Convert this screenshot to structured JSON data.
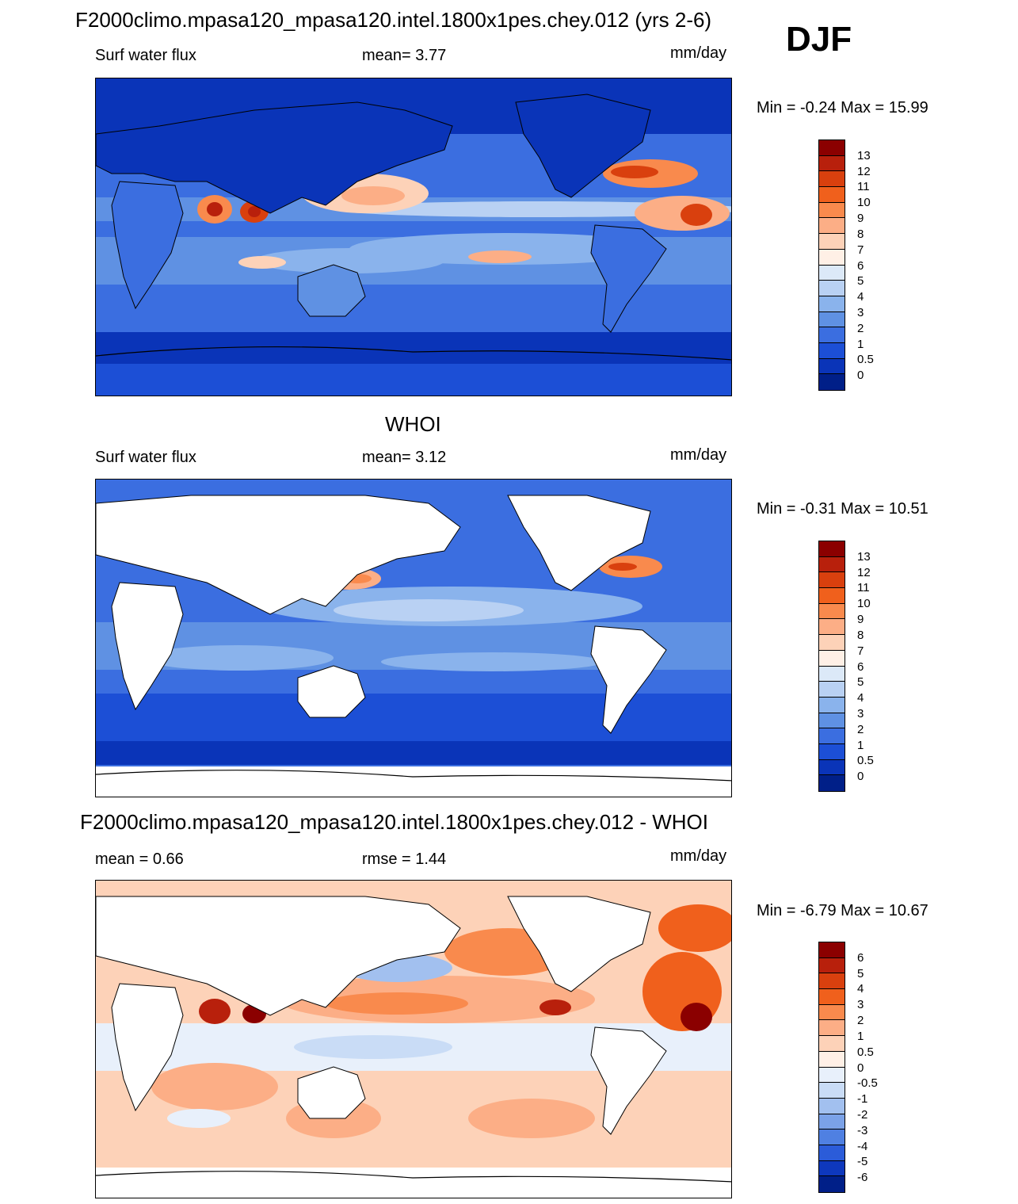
{
  "season": "DJF",
  "panels": [
    {
      "id": "model",
      "title": "F2000climo.mpasa120_mpasa120.intel.1800x1pes.chey.012 (yrs 2-6)",
      "left_label": "Surf water flux",
      "center_label": "mean=   3.77",
      "units": "mm/day",
      "minmax": "Min =  -0.24 Max =  15.99",
      "colorbar_labels": [
        "13",
        "12",
        "11",
        "10",
        "9",
        "8",
        "7",
        "6",
        "5",
        "4",
        "3",
        "2",
        "1",
        "0.5",
        "0"
      ],
      "colors": [
        "#8b0000",
        "#b8200c",
        "#d9400e",
        "#f0601c",
        "#f98a4d",
        "#fcae86",
        "#fdd2b8",
        "#fff0e6",
        "#dce9f8",
        "#b9d1f3",
        "#8ab3ec",
        "#5f91e3",
        "#3b6ee0",
        "#1c4fd6",
        "#0a34b8",
        "#001f88"
      ],
      "land_masked": false
    },
    {
      "id": "obs",
      "title": "WHOI",
      "left_label": "Surf water flux",
      "center_label": "mean=   3.12",
      "units": "mm/day",
      "minmax": "Min =  -0.31 Max =  10.51",
      "colorbar_labels": [
        "13",
        "12",
        "11",
        "10",
        "9",
        "8",
        "7",
        "6",
        "5",
        "4",
        "3",
        "2",
        "1",
        "0.5",
        "0"
      ],
      "colors": [
        "#8b0000",
        "#b8200c",
        "#d9400e",
        "#f0601c",
        "#f98a4d",
        "#fcae86",
        "#fdd2b8",
        "#fff0e6",
        "#dce9f8",
        "#b9d1f3",
        "#8ab3ec",
        "#5f91e3",
        "#3b6ee0",
        "#1c4fd6",
        "#0a34b8",
        "#001f88"
      ],
      "land_masked": true
    },
    {
      "id": "diff",
      "title": "F2000climo.mpasa120_mpasa120.intel.1800x1pes.chey.012 - WHOI",
      "left_label": "mean =    0.66",
      "center_label": "rmse =    1.44",
      "units": "mm/day",
      "minmax": "Min =  -6.79 Max =  10.67",
      "colorbar_labels": [
        "6",
        "5",
        "4",
        "3",
        "2",
        "1",
        "0.5",
        "0",
        "-0.5",
        "-1",
        "-2",
        "-3",
        "-4",
        "-5",
        "-6"
      ],
      "colors": [
        "#8b0000",
        "#b8200c",
        "#d9400e",
        "#f0601c",
        "#f98a4d",
        "#fcae86",
        "#fdd2b8",
        "#fff0e6",
        "#e8f0fb",
        "#c9dcf6",
        "#a2c0ef",
        "#7ba2e8",
        "#4f80e2",
        "#2b5cd9",
        "#0e38bd",
        "#001f88"
      ],
      "land_masked": true
    }
  ]
}
